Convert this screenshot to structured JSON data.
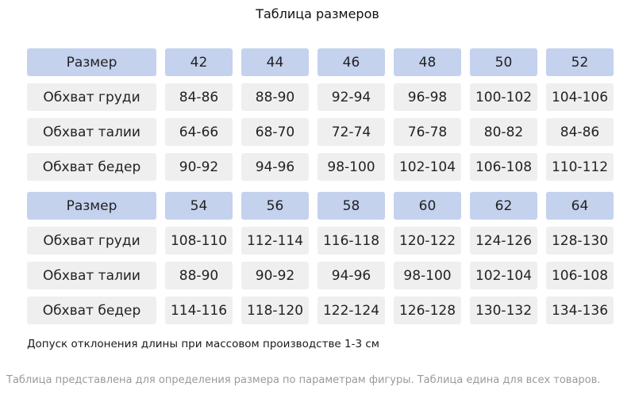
{
  "title": "Таблица размеров",
  "tables": [
    {
      "header": {
        "label": "Размер",
        "values": [
          "42",
          "44",
          "46",
          "48",
          "50",
          "52"
        ]
      },
      "rows": [
        {
          "label": "Обхват груди",
          "values": [
            "84-86",
            "88-90",
            "92-94",
            "96-98",
            "100-102",
            "104-106"
          ]
        },
        {
          "label": "Обхват талии",
          "values": [
            "64-66",
            "68-70",
            "72-74",
            "76-78",
            "80-82",
            "84-86"
          ]
        },
        {
          "label": "Обхват бедер",
          "values": [
            "90-92",
            "94-96",
            "98-100",
            "102-104",
            "106-108",
            "110-112"
          ]
        }
      ]
    },
    {
      "header": {
        "label": "Размер",
        "values": [
          "54",
          "56",
          "58",
          "60",
          "62",
          "64"
        ]
      },
      "rows": [
        {
          "label": "Обхват груди",
          "values": [
            "108-110",
            "112-114",
            "116-118",
            "120-122",
            "124-126",
            "128-130"
          ]
        },
        {
          "label": "Обхват талии",
          "values": [
            "88-90",
            "90-92",
            "94-96",
            "98-100",
            "102-104",
            "106-108"
          ]
        },
        {
          "label": "Обхват бедер",
          "values": [
            "114-116",
            "118-120",
            "122-124",
            "126-128",
            "130-132",
            "134-136"
          ]
        }
      ]
    }
  ],
  "note": "Допуск отклонения длины при массовом производстве 1-3 см",
  "footer": "Таблица представлена для определения размера по параметрам фигуры. Таблица едина для всех товаров.",
  "colors": {
    "header_bg": "#c4d2ee",
    "cell_bg": "#efefef"
  }
}
